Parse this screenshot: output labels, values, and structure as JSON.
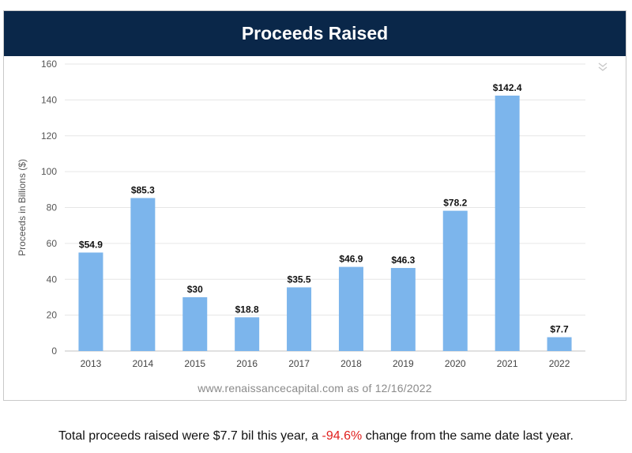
{
  "header": {
    "title": "Proceeds Raised"
  },
  "icons": {
    "menu": "double-chevron-down-icon"
  },
  "colors": {
    "header_bg": "#0a2749",
    "bar": "#7cb5ec",
    "change": "#e0211f"
  },
  "chart_data": {
    "type": "bar",
    "title": "Proceeds Raised",
    "xlabel": "",
    "ylabel": "Proceeds in Billions ($)",
    "ylim": [
      0,
      160
    ],
    "yticks": [
      0,
      20,
      40,
      60,
      80,
      100,
      120,
      140,
      160
    ],
    "categories": [
      "2013",
      "2014",
      "2015",
      "2016",
      "2017",
      "2018",
      "2019",
      "2020",
      "2021",
      "2022"
    ],
    "values": [
      54.9,
      85.3,
      30,
      18.8,
      35.5,
      46.9,
      46.3,
      78.2,
      142.4,
      7.7
    ],
    "data_labels": [
      "$54.9",
      "$85.3",
      "$30",
      "$18.8",
      "$35.5",
      "$46.9",
      "$46.3",
      "$78.2",
      "$142.4",
      "$7.7"
    ],
    "grid": true,
    "legend": "none"
  },
  "source": {
    "text": "www.renaissancecapital.com as of 12/16/2022"
  },
  "summary": {
    "prefix": "Total proceeds raised were $7.7 bil this year, a ",
    "change": "-94.6%",
    "suffix": " change from the same date last year."
  }
}
